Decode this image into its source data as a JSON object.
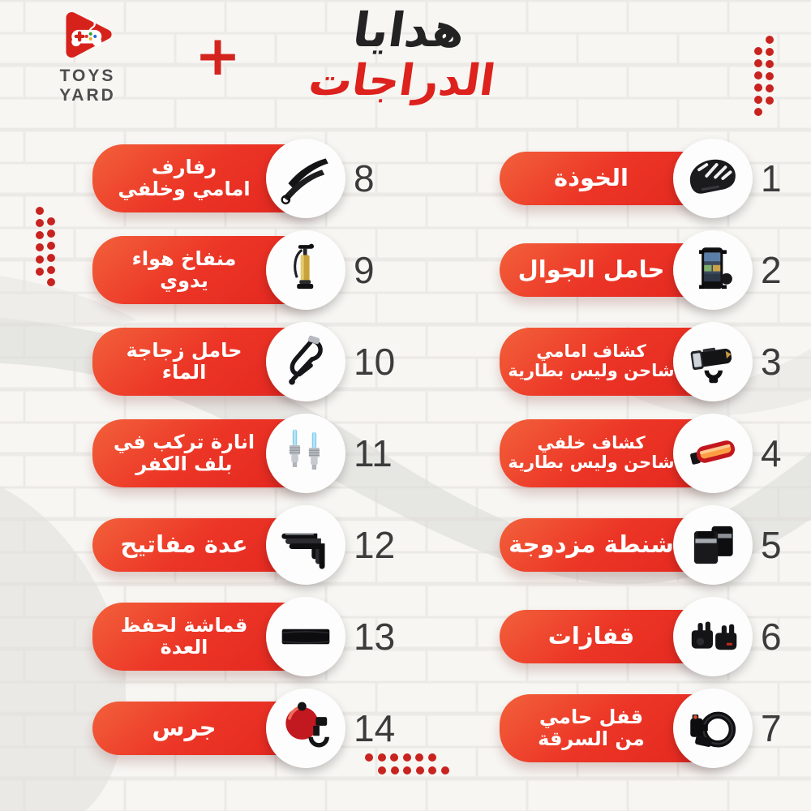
{
  "brand": {
    "name": "TOYS YARD",
    "logo_icon": "gamepad-play-logo"
  },
  "header": {
    "title_line1": "هدايا",
    "title_line2": "الدراجات",
    "plus_sign": "+"
  },
  "colors": {
    "pill_gradient_start": "#f2613b",
    "pill_gradient_end": "#e2251f",
    "title_dark": "#232323",
    "title_red": "#dd211d",
    "number_gray": "#3b3b3b",
    "dot_red": "#c8231f",
    "background": "#f7f6f3"
  },
  "columns": {
    "right": {
      "items": [
        {
          "num": "1",
          "lines": [
            "الخوذة"
          ],
          "icon": "helmet-icon"
        },
        {
          "num": "2",
          "lines": [
            "حامل الجوال"
          ],
          "icon": "phone-mount-icon"
        },
        {
          "num": "3",
          "lines": [
            "كشاف امامي",
            "شاحن وليس بطارية"
          ],
          "icon": "front-light-icon"
        },
        {
          "num": "4",
          "lines": [
            "كشاف خلفي",
            "شاحن وليس بطارية"
          ],
          "icon": "rear-light-icon"
        },
        {
          "num": "5",
          "lines": [
            "شنطة مزدوجة"
          ],
          "icon": "double-bag-icon"
        },
        {
          "num": "6",
          "lines": [
            "قفازات"
          ],
          "icon": "gloves-icon"
        },
        {
          "num": "7",
          "lines": [
            "قفل حامي",
            "من السرقة"
          ],
          "icon": "cable-lock-icon"
        }
      ]
    },
    "left": {
      "items": [
        {
          "num": "8",
          "lines": [
            "رفارف",
            "امامي وخلفي"
          ],
          "icon": "fenders-icon"
        },
        {
          "num": "9",
          "lines": [
            "منفاخ هواء",
            "يدوي"
          ],
          "icon": "hand-pump-icon"
        },
        {
          "num": "10",
          "lines": [
            "حامل زجاجة",
            "الماء"
          ],
          "icon": "bottle-cage-icon"
        },
        {
          "num": "11",
          "lines": [
            "انارة تركب في",
            "بلف الكفر"
          ],
          "icon": "valve-light-icon"
        },
        {
          "num": "12",
          "lines": [
            "عدة مفاتيح"
          ],
          "icon": "allen-keys-icon"
        },
        {
          "num": "13",
          "lines": [
            "قماشة لحفظ",
            "العدة"
          ],
          "icon": "tool-cloth-icon"
        },
        {
          "num": "14",
          "lines": [
            "جرس"
          ],
          "icon": "bell-icon"
        }
      ]
    }
  }
}
